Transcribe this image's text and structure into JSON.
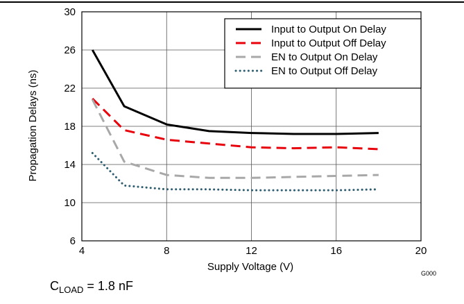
{
  "chart_data": {
    "type": "line",
    "xlabel": "Supply Voltage (V)",
    "ylabel": "Propagation Delays (ns)",
    "xlim": [
      4,
      20
    ],
    "ylim": [
      6,
      30
    ],
    "x_ticks": [
      4,
      8,
      12,
      16,
      20
    ],
    "y_ticks": [
      6,
      10,
      14,
      18,
      22,
      26,
      30
    ],
    "grid": true,
    "legend_position": "top-right",
    "series": [
      {
        "name": "Input to Output On Delay",
        "color": "#000000",
        "style": "solid",
        "x": [
          4.5,
          6,
          8,
          10,
          12,
          14,
          16,
          18
        ],
        "y": [
          26,
          20.1,
          18.2,
          17.5,
          17.3,
          17.2,
          17.2,
          17.3
        ]
      },
      {
        "name": "Input to Output Off Delay",
        "color": "#e8000b",
        "style": "dash",
        "x": [
          4.5,
          6,
          8,
          10,
          12,
          14,
          16,
          18
        ],
        "y": [
          20.9,
          17.6,
          16.6,
          16.2,
          15.8,
          15.7,
          15.8,
          15.6
        ]
      },
      {
        "name": "EN to Output On Delay",
        "color": "#a8a8a8",
        "style": "dash",
        "x": [
          4.5,
          6,
          8,
          10,
          12,
          14,
          16,
          18
        ],
        "y": [
          20.8,
          14.3,
          12.9,
          12.6,
          12.6,
          12.7,
          12.8,
          12.9
        ]
      },
      {
        "name": "EN to Output Off Delay",
        "color": "#2e5e72",
        "style": "dot",
        "x": [
          4.5,
          6,
          8,
          10,
          12,
          14,
          16,
          18
        ],
        "y": [
          15.2,
          11.8,
          11.4,
          11.4,
          11.3,
          11.3,
          11.3,
          11.4
        ]
      }
    ]
  },
  "figure_code": "G000",
  "cload": {
    "prefix": "C",
    "subscript": "LOAD",
    "value": " = 1.8 nF"
  }
}
